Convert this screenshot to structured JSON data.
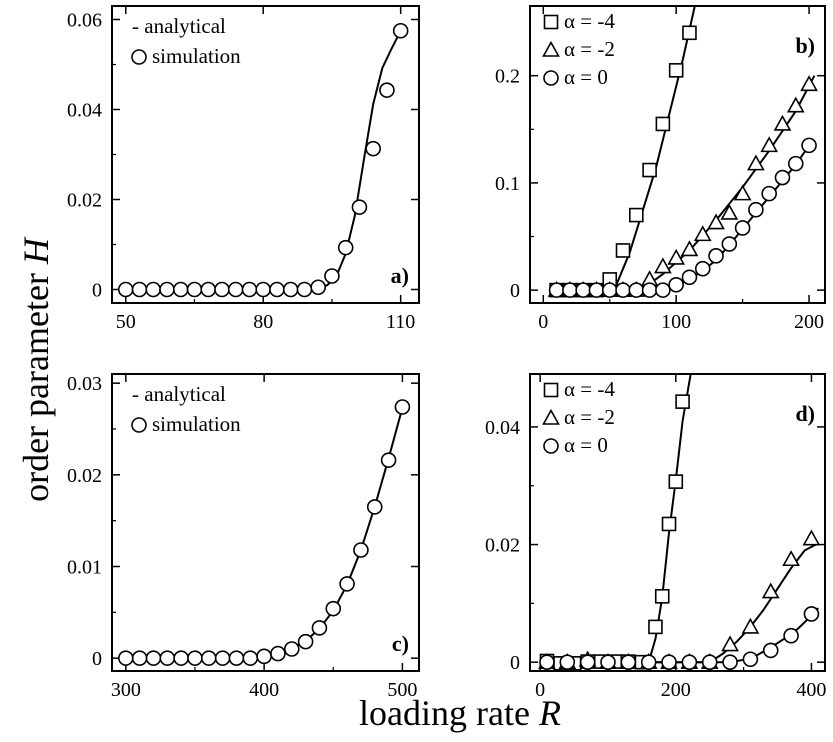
{
  "figure": {
    "ylabel_text": "order parameter ",
    "ylabel_var": "H",
    "xlabel_text": "loading rate ",
    "xlabel_var": "R"
  },
  "chart_data": [
    {
      "type": "line",
      "panel_label": "a)",
      "xlim": [
        47,
        114
      ],
      "ylim": [
        -0.003,
        0.063
      ],
      "xticks": [
        50,
        80,
        110
      ],
      "xtick_labels": [
        "50",
        "80",
        "110"
      ],
      "yticks": [
        0,
        0.02,
        0.04,
        0.06
      ],
      "ytick_labels": [
        "0",
        "0.02",
        "0.04",
        "0.06"
      ],
      "legend": [
        {
          "marker": "-",
          "label": "- analytical"
        },
        {
          "marker": "circle",
          "label": "simulation"
        }
      ],
      "legend_placement": "top-left",
      "curves": [
        {
          "name": "analytical",
          "x": [
            50,
            92,
            94,
            96,
            98,
            100,
            102,
            104,
            106,
            108,
            110
          ],
          "y": [
            0,
            0,
            0.001,
            0.003,
            0.008,
            0.0165,
            0.029,
            0.0412,
            0.0492,
            0.0535,
            0.0575
          ]
        }
      ],
      "series": [
        {
          "name": "simulation",
          "marker": "circle",
          "x": [
            50,
            53,
            56,
            59,
            62,
            65,
            68,
            71,
            74,
            77,
            80,
            83,
            86,
            89,
            92,
            95,
            98,
            101,
            104,
            107,
            110
          ],
          "y": [
            0,
            0,
            0,
            0,
            0,
            0,
            0,
            0,
            0,
            0,
            0,
            0,
            0,
            0,
            0.0005,
            0.003,
            0.0093,
            0.0183,
            0.0313,
            0.0443,
            0.0575
          ]
        }
      ]
    },
    {
      "type": "line",
      "panel_label": "b)",
      "xlim": [
        -10,
        212
      ],
      "ylim": [
        -0.012,
        0.265
      ],
      "xticks": [
        0,
        100,
        200
      ],
      "xtick_labels": [
        "0",
        "100",
        "200"
      ],
      "yticks": [
        0,
        0.1,
        0.2
      ],
      "ytick_labels": [
        "0",
        "0.1",
        "0.2"
      ],
      "legend": [
        {
          "marker": "square",
          "label": "α = -4"
        },
        {
          "marker": "triangle",
          "label": "α = -2"
        },
        {
          "marker": "circle",
          "label": "α = 0"
        }
      ],
      "legend_placement": "top-left",
      "curves": [
        {
          "name": "α = -4",
          "x": [
            10,
            48,
            55,
            65,
            75,
            85,
            95,
            105,
            114
          ],
          "y": [
            0,
            0,
            0.005,
            0.035,
            0.075,
            0.115,
            0.165,
            0.215,
            0.265
          ]
        },
        {
          "name": "α = -2",
          "x": [
            10,
            70,
            78,
            90,
            110,
            130,
            150,
            170,
            190,
            204
          ],
          "y": [
            0,
            0,
            0.004,
            0.015,
            0.037,
            0.065,
            0.096,
            0.13,
            0.167,
            0.2
          ]
        },
        {
          "name": "α = 0",
          "x": [
            10,
            93,
            100,
            110,
            120,
            130,
            140,
            150,
            160,
            170,
            180,
            190,
            200
          ],
          "y": [
            0,
            0,
            0.004,
            0.01,
            0.018,
            0.028,
            0.042,
            0.057,
            0.072,
            0.087,
            0.102,
            0.117,
            0.135
          ]
        }
      ],
      "series": [
        {
          "name": "α = -4",
          "marker": "square",
          "x": [
            10,
            20,
            30,
            40,
            50,
            60,
            70,
            80,
            90,
            100,
            110
          ],
          "y": [
            0,
            0,
            0,
            0,
            0.01,
            0.037,
            0.07,
            0.112,
            0.155,
            0.205,
            0.24
          ]
        },
        {
          "name": "α = -2",
          "marker": "triangle",
          "x": [
            10,
            20,
            30,
            40,
            50,
            60,
            70,
            80,
            90,
            100,
            110,
            120,
            130,
            140,
            150,
            160,
            170,
            180,
            190,
            200
          ],
          "y": [
            0,
            0,
            0,
            0,
            0,
            0,
            0,
            0.01,
            0.022,
            0.03,
            0.038,
            0.052,
            0.063,
            0.072,
            0.09,
            0.118,
            0.135,
            0.155,
            0.172,
            0.192
          ]
        },
        {
          "name": "α = 0",
          "marker": "circle",
          "x": [
            10,
            20,
            30,
            40,
            50,
            60,
            70,
            80,
            90,
            100,
            110,
            120,
            130,
            140,
            150,
            160,
            170,
            180,
            190,
            200
          ],
          "y": [
            0,
            0,
            0,
            0,
            0,
            0,
            0,
            0,
            0,
            0.005,
            0.012,
            0.02,
            0.032,
            0.043,
            0.058,
            0.075,
            0.09,
            0.105,
            0.118,
            0.135
          ]
        }
      ]
    },
    {
      "type": "line",
      "panel_label": "c)",
      "xlim": [
        290,
        512
      ],
      "ylim": [
        -0.0014,
        0.031
      ],
      "xticks": [
        300,
        400,
        500
      ],
      "xtick_labels": [
        "300",
        "400",
        "500"
      ],
      "yticks": [
        0,
        0.01,
        0.02,
        0.03
      ],
      "ytick_labels": [
        "0",
        "0.01",
        "0.02",
        "0.03"
      ],
      "legend": [
        {
          "marker": "-",
          "label": "- analytical"
        },
        {
          "marker": "circle",
          "label": "simulation"
        }
      ],
      "legend_placement": "top-left",
      "curves": [
        {
          "name": "analytical",
          "x": [
            300,
            390,
            400,
            410,
            420,
            430,
            440,
            450,
            460,
            470,
            480,
            490,
            500
          ],
          "y": [
            0,
            0,
            0.00015,
            0.0005,
            0.0011,
            0.0019,
            0.0032,
            0.0052,
            0.008,
            0.0118,
            0.0165,
            0.0218,
            0.0273
          ]
        }
      ],
      "series": [
        {
          "name": "simulation",
          "marker": "circle",
          "x": [
            300,
            310,
            320,
            330,
            340,
            350,
            360,
            370,
            380,
            390,
            400,
            410,
            420,
            430,
            440,
            450,
            460,
            470,
            480,
            490,
            500
          ],
          "y": [
            0,
            0,
            0,
            0,
            0,
            0,
            0,
            0,
            0,
            0,
            0.0002,
            0.0005,
            0.001,
            0.0018,
            0.0033,
            0.0054,
            0.0081,
            0.0118,
            0.0165,
            0.0216,
            0.0274
          ]
        }
      ]
    },
    {
      "type": "line",
      "panel_label": "d)",
      "xlim": [
        -15,
        420
      ],
      "ylim": [
        -0.0015,
        0.049
      ],
      "xticks": [
        0,
        200,
        400
      ],
      "xtick_labels": [
        "0",
        "200",
        "400"
      ],
      "yticks": [
        0,
        0.02,
        0.04
      ],
      "ytick_labels": [
        "0",
        "0.02",
        "0.04"
      ],
      "legend": [
        {
          "marker": "square",
          "label": "α = -4"
        },
        {
          "marker": "triangle",
          "label": "α = -2"
        },
        {
          "marker": "circle",
          "label": "α = 0"
        }
      ],
      "legend_placement": "top-left",
      "curves": [
        {
          "name": "α = -4",
          "x": [
            10,
            160,
            170,
            180,
            190,
            200,
            210,
            222
          ],
          "y": [
            0,
            0,
            0.004,
            0.011,
            0.022,
            0.031,
            0.041,
            0.049
          ]
        },
        {
          "name": "α = -2",
          "x": [
            10,
            250,
            270,
            290,
            310,
            330,
            350,
            370,
            390,
            410
          ],
          "y": [
            0,
            0,
            0.0015,
            0.0035,
            0.006,
            0.009,
            0.0125,
            0.016,
            0.019,
            0.0202
          ]
        },
        {
          "name": "α = 0",
          "x": [
            10,
            280,
            300,
            320,
            340,
            360,
            380,
            400,
            410
          ],
          "y": [
            0,
            0,
            0.0004,
            0.0012,
            0.0025,
            0.004,
            0.0057,
            0.0079,
            0.0092
          ]
        }
      ],
      "series": [
        {
          "name": "α = -4",
          "marker": "square",
          "x": [
            10,
            30,
            50,
            70,
            90,
            110,
            130,
            150,
            170,
            180,
            190,
            200,
            210
          ],
          "y": [
            0.0002,
            -0.0002,
            -0.0002,
            0.0001,
            0.0001,
            0.0001,
            0.0001,
            0,
            0.006,
            0.0112,
            0.0235,
            0.0307,
            0.0443
          ]
        },
        {
          "name": "α = -2",
          "marker": "triangle",
          "x": [
            10,
            40,
            70,
            100,
            130,
            160,
            190,
            220,
            250,
            280,
            310,
            340,
            370,
            400
          ],
          "y": [
            0,
            0,
            0.0004,
            0,
            0,
            0,
            0,
            0,
            0,
            0.003,
            0.006,
            0.012,
            0.0175,
            0.021
          ]
        },
        {
          "name": "α = 0",
          "marker": "circle",
          "x": [
            10,
            40,
            70,
            100,
            130,
            160,
            190,
            220,
            250,
            280,
            310,
            340,
            370,
            400
          ],
          "y": [
            0,
            0,
            0,
            0,
            0,
            0,
            0,
            0,
            0,
            0,
            0.0005,
            0.002,
            0.0045,
            0.0082
          ]
        }
      ]
    }
  ]
}
